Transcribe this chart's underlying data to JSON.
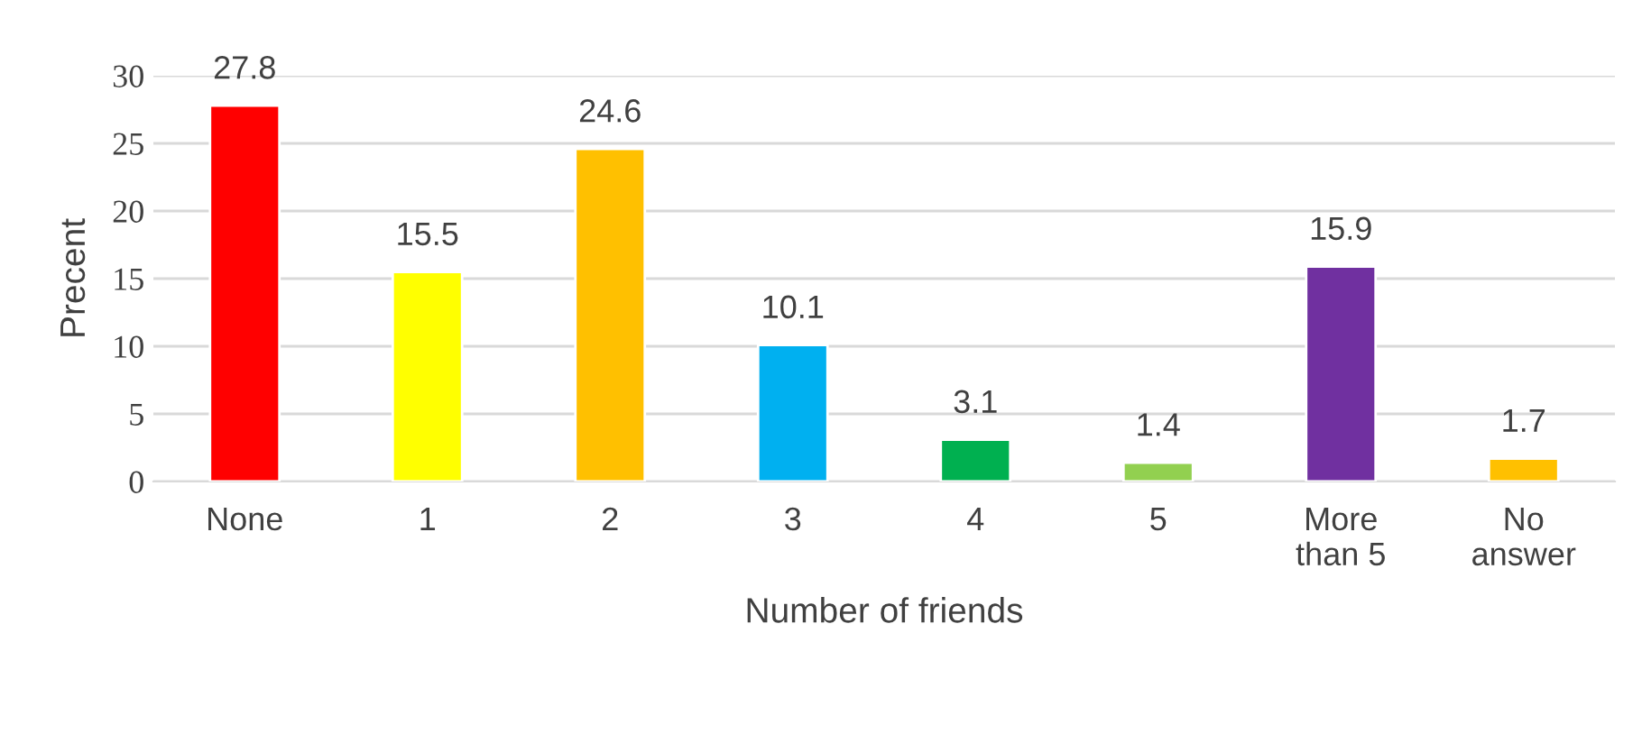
{
  "chart_data": {
    "type": "bar",
    "categories": [
      "None",
      "1",
      "2",
      "3",
      "4",
      "5",
      "More\nthan 5",
      "No\nanswer"
    ],
    "values": [
      27.8,
      15.5,
      24.6,
      10.1,
      3.1,
      1.4,
      15.9,
      1.7
    ],
    "colors": [
      "#ff0000",
      "#ffff00",
      "#ffc000",
      "#00b0f0",
      "#00b050",
      "#92d050",
      "#7030a0",
      "#ffc000"
    ],
    "xlabel": "Number of friends",
    "ylabel": "Precent",
    "ylim": [
      0,
      30
    ],
    "yticks": [
      0,
      5,
      10,
      15,
      20,
      25,
      30
    ],
    "grid": "y",
    "data_labels": true
  }
}
